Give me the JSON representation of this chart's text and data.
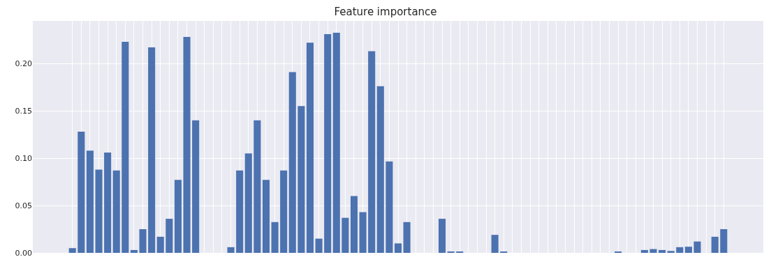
{
  "chart_data": {
    "type": "bar",
    "title": "Feature importance",
    "categories": [
      null,
      null,
      null,
      null,
      null,
      null,
      null,
      null,
      null,
      null,
      null,
      null,
      null,
      null,
      null,
      null,
      null,
      null,
      null,
      null,
      null,
      null,
      null,
      null,
      null,
      null,
      null,
      null,
      null,
      null,
      null,
      null,
      null,
      null,
      null,
      null,
      null,
      null,
      null,
      null,
      null,
      null,
      null,
      null,
      null,
      null,
      null,
      null,
      null,
      null,
      null,
      null,
      null,
      null,
      null,
      null,
      null,
      null,
      null,
      null,
      null,
      null,
      null,
      null,
      null,
      null,
      null,
      null,
      null,
      null,
      null,
      null,
      null,
      null,
      null,
      null,
      null,
      null,
      null,
      null,
      null,
      null,
      null
    ],
    "values": [
      null,
      null,
      null,
      null,
      0.005,
      0.128,
      0.108,
      0.088,
      0.106,
      0.087,
      0.223,
      0.003,
      0.025,
      0.217,
      0.017,
      0.036,
      0.077,
      0.228,
      0.14,
      0,
      0,
      0,
      0.006,
      0.087,
      0.105,
      0.14,
      0.077,
      0.0325,
      0.087,
      0.191,
      0.155,
      0.222,
      0.015,
      0.231,
      0.2325,
      0.037,
      0.06,
      0.043,
      0.213,
      0.176,
      0.0965,
      0.01,
      0.0325,
      0,
      0,
      0,
      0.036,
      0.001,
      0.001,
      0,
      0,
      0,
      0.019,
      0.001,
      0,
      0,
      0,
      0,
      0,
      0,
      0,
      0,
      0,
      0,
      0,
      0,
      0.001,
      0,
      0,
      0.003,
      0.004,
      0.003,
      0.002,
      0.006,
      0.0065,
      0.012,
      0,
      0.017,
      0.025,
      null,
      null,
      null,
      null
    ],
    "color": "#4c72b0",
    "ylim": [
      0,
      0.245
    ],
    "yticks": [
      {
        "value": 0,
        "label": "0.00"
      },
      0.05,
      {
        "value": 0.1,
        "label": "0.10"
      },
      0.15,
      {
        "value": 0.2,
        "label": "0.20"
      }
    ],
    "grid": true
  }
}
